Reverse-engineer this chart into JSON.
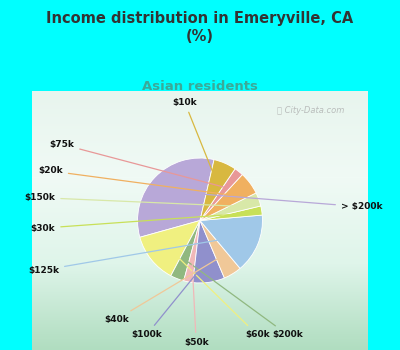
{
  "title": "Income distribution in Emeryville, CA\n(%)",
  "subtitle": "Asian residents",
  "title_color": "#333333",
  "subtitle_color": "#3aaa99",
  "background_color": "#00ffff",
  "chart_bg_left": "#b8e8d0",
  "chart_bg_right": "#e8f8f0",
  "watermark": "ⓘ City-Data.com",
  "slices": [
    {
      "label": "> $200k",
      "value": 28,
      "color": "#b8a8d8"
    },
    {
      "label": "$60k",
      "value": 11,
      "color": "#f0f080"
    },
    {
      "label": "$200k",
      "value": 3,
      "color": "#90b880"
    },
    {
      "label": "$50k",
      "value": 2,
      "color": "#f0b8b8"
    },
    {
      "label": "$100k",
      "value": 7,
      "color": "#9090cc"
    },
    {
      "label": "$40k",
      "value": 4,
      "color": "#f0c898"
    },
    {
      "label": "$125k",
      "value": 13,
      "color": "#a0c8e8"
    },
    {
      "label": "$30k",
      "value": 2,
      "color": "#c8e058"
    },
    {
      "label": "$150k",
      "value": 3,
      "color": "#d8e8a8"
    },
    {
      "label": "$20k",
      "value": 5,
      "color": "#f0b060"
    },
    {
      "label": "$75k",
      "value": 2,
      "color": "#e89898"
    },
    {
      "label": "$10k",
      "value": 5,
      "color": "#d8b840"
    }
  ],
  "startangle": 77,
  "figsize": [
    4.0,
    3.5
  ],
  "dpi": 100
}
